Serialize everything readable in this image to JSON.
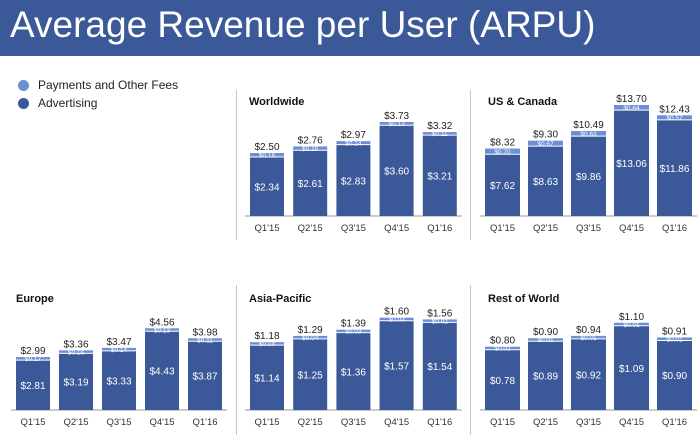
{
  "title": "Average Revenue per User (ARPU)",
  "colors": {
    "header_bg": "#3b5998",
    "advertising": "#3b5998",
    "payments": "#6d8fd6",
    "axis": "#999999"
  },
  "legend": [
    {
      "name": "Payments and Other Fees",
      "color": "#6d8fd6"
    },
    {
      "name": "Advertising",
      "color": "#3b5998"
    }
  ],
  "chart_data": [
    {
      "type": "bar",
      "stacked": true,
      "title": "Worldwide",
      "categories": [
        "Q1'15",
        "Q2'15",
        "Q3'15",
        "Q4'15",
        "Q1'16"
      ],
      "totals": [
        "$2.50",
        "$2.76",
        "$2.97",
        "$3.73",
        "$3.32"
      ],
      "series": [
        {
          "name": "Advertising",
          "values": [
            2.34,
            2.61,
            2.83,
            3.6,
            3.21
          ],
          "labels": [
            "$2.34",
            "$2.61",
            "$2.83",
            "$3.60",
            "$3.21"
          ]
        },
        {
          "name": "Payments and Other Fees",
          "values": [
            0.16,
            0.15,
            0.14,
            0.13,
            0.11
          ],
          "labels": [
            "$0.16",
            "$0.15",
            "$0.14",
            "$0.13",
            "$0.11"
          ]
        }
      ]
    },
    {
      "type": "bar",
      "stacked": true,
      "title": "US & Canada",
      "categories": [
        "Q1'15",
        "Q2'15",
        "Q3'15",
        "Q4'15",
        "Q1'16"
      ],
      "totals": [
        "$8.32",
        "$9.30",
        "$10.49",
        "$13.70",
        "$12.43"
      ],
      "series": [
        {
          "name": "Advertising",
          "values": [
            7.62,
            8.63,
            9.86,
            13.06,
            11.86
          ],
          "labels": [
            "$7.62",
            "$8.63",
            "$9.86",
            "$13.06",
            "$11.86"
          ]
        },
        {
          "name": "Payments and Other Fees",
          "values": [
            0.7,
            0.67,
            0.63,
            0.64,
            0.57
          ],
          "labels": [
            "$0.70",
            "$0.67",
            "$0.63",
            "$0.64",
            "$0.57"
          ]
        }
      ]
    },
    {
      "type": "bar",
      "stacked": true,
      "title": "Europe",
      "categories": [
        "Q1'15",
        "Q2'15",
        "Q3'15",
        "Q4'15",
        "Q1'16"
      ],
      "totals": [
        "$2.99",
        "$3.36",
        "$3.47",
        "$4.56",
        "$3.98"
      ],
      "series": [
        {
          "name": "Advertising",
          "values": [
            2.81,
            3.19,
            3.33,
            4.43,
            3.87
          ],
          "labels": [
            "$2.81",
            "$3.19",
            "$3.33",
            "$4.43",
            "$3.87"
          ]
        },
        {
          "name": "Payments and Other Fees",
          "values": [
            0.17,
            0.16,
            0.14,
            0.13,
            0.11
          ],
          "labels": [
            "$0.17",
            "$0.16",
            "$0.14",
            "$0.13",
            "$0.11"
          ]
        }
      ]
    },
    {
      "type": "bar",
      "stacked": true,
      "title": "Asia-Pacific",
      "categories": [
        "Q1'15",
        "Q2'15",
        "Q3'15",
        "Q4'15",
        "Q1'16"
      ],
      "totals": [
        "$1.18",
        "$1.29",
        "$1.39",
        "$1.60",
        "$1.56"
      ],
      "series": [
        {
          "name": "Advertising",
          "values": [
            1.14,
            1.25,
            1.36,
            1.57,
            1.54
          ],
          "labels": [
            "$1.14",
            "$1.25",
            "$1.36",
            "$1.57",
            "$1.54"
          ]
        },
        {
          "name": "Payments and Other Fees",
          "values": [
            0.04,
            0.04,
            0.03,
            0.03,
            0.02
          ],
          "labels": [
            "$0.04",
            "$0.04",
            "$0.03",
            "$0.03",
            "$0.02"
          ]
        }
      ]
    },
    {
      "type": "bar",
      "stacked": true,
      "title": "Rest of World",
      "categories": [
        "Q1'15",
        "Q2'15",
        "Q3'15",
        "Q4'15",
        "Q1'16"
      ],
      "totals": [
        "$0.80",
        "$0.90",
        "$0.94",
        "$1.10",
        "$0.91"
      ],
      "series": [
        {
          "name": "Advertising",
          "values": [
            0.78,
            0.89,
            0.92,
            1.09,
            0.9
          ],
          "labels": [
            "$0.78",
            "$0.89",
            "$0.92",
            "$1.09",
            "$0.90"
          ]
        },
        {
          "name": "Payments and Other Fees",
          "values": [
            0.02,
            0.01,
            0.01,
            0.01,
            0.01
          ],
          "labels": [
            "$0.02",
            "$0.01",
            "$0.01",
            "$0.01",
            "$0.01"
          ]
        }
      ]
    }
  ]
}
